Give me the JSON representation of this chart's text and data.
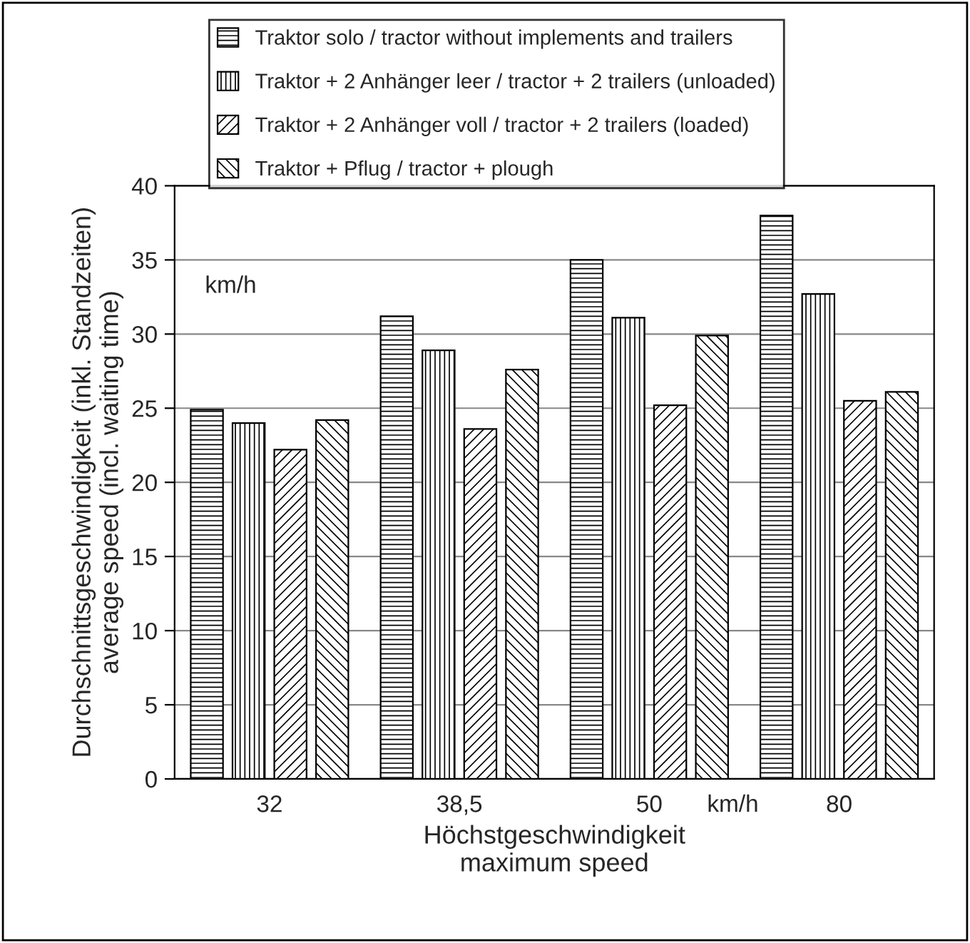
{
  "chart_data": {
    "type": "bar",
    "categories": [
      "32",
      "38,5",
      "50",
      "80"
    ],
    "series": [
      {
        "name": "Traktor solo / tractor without implements and trailers",
        "color": "#000000",
        "values": [
          24.9,
          31.2,
          35.0,
          38.0
        ]
      },
      {
        "name": "Traktor + 2 Anhänger leer / tractor + 2 trailers (unloaded)",
        "color": "#000000",
        "values": [
          24.0,
          28.9,
          31.1,
          32.7
        ]
      },
      {
        "name": "Traktor + 2 Anhänger voll / tractor + 2 trailers (loaded)",
        "color": "#000000",
        "values": [
          22.2,
          23.6,
          25.2,
          25.5
        ]
      },
      {
        "name": "Traktor + Pflug / tractor + plough",
        "color": "#000000",
        "values": [
          24.2,
          27.6,
          29.9,
          26.1
        ]
      }
    ],
    "xlabel": "Höchstgeschwindigkeit\nmaximum speed",
    "ylabel": "Durchschnittsgeschwindigkeit (inkl. Standzeiten)\naverage speed (incl. waiting time)",
    "annotations": [
      "km/h",
      "km/h"
    ],
    "ylim": [
      0,
      40
    ],
    "yticks": [
      0,
      5,
      10,
      15,
      20,
      25,
      30,
      35,
      40
    ],
    "grid": "y",
    "legend": "top"
  }
}
